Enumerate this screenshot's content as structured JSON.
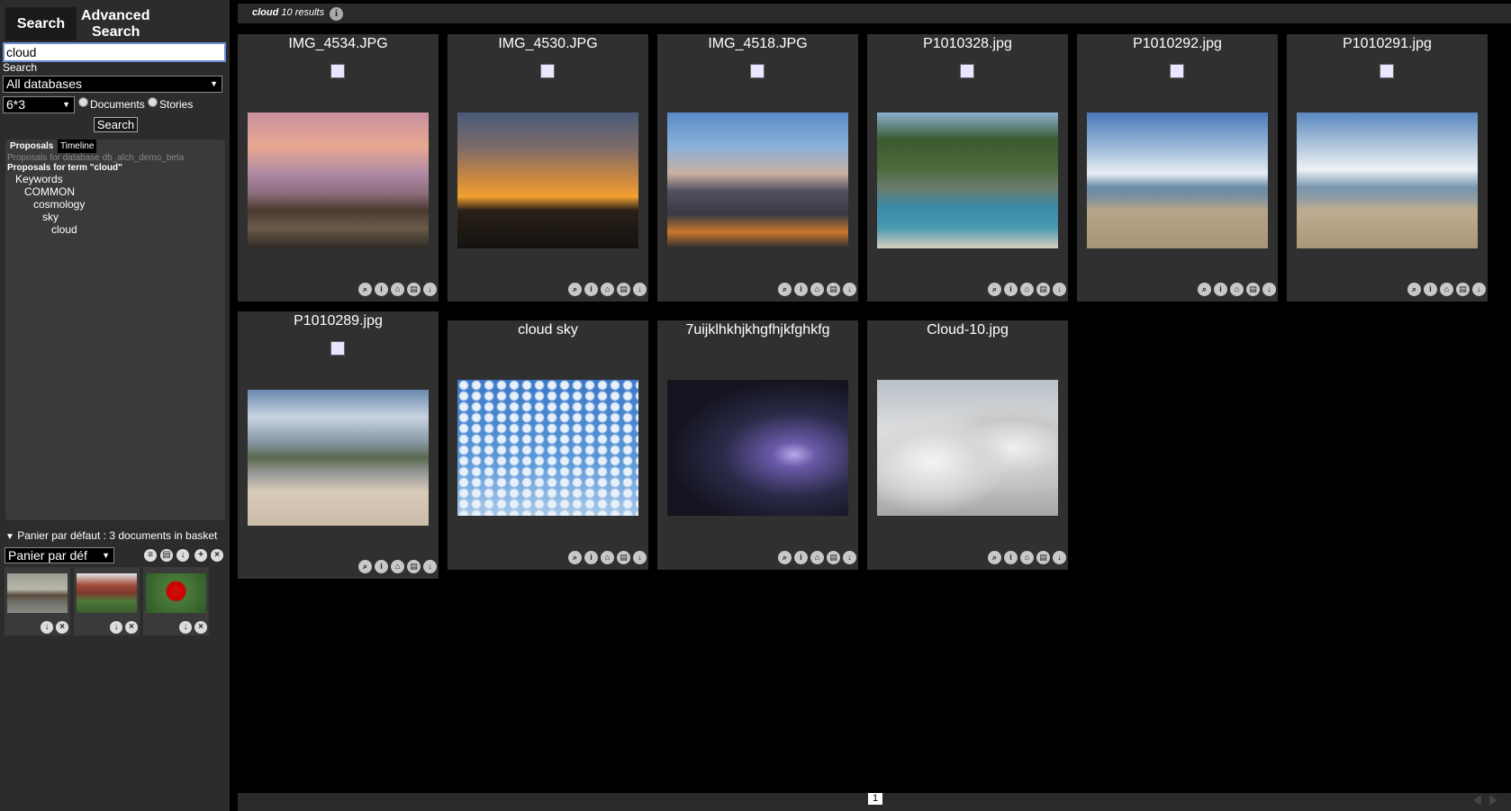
{
  "sidebar": {
    "tabs": {
      "search": "Search",
      "advanced_line1": "Advanced",
      "advanced_line2": "Search"
    },
    "search_value": "cloud",
    "search_label": "Search",
    "database_select": "All databases",
    "size_select": "6*3",
    "radio_documents": "Documents",
    "radio_stories": "Stories",
    "search_button": "Search",
    "proposals": {
      "tab_proposals": "Proposals",
      "tab_timeline": "Timeline",
      "db_line": "Proposals for database db_alch_demo_beta",
      "term_line": "Proposals for term \"cloud\"",
      "tree": [
        "Keywords",
        "COMMON",
        "cosmology",
        "sky",
        "cloud"
      ]
    },
    "basket": {
      "title": "Panier par défaut : 3 documents in basket",
      "select": "Panier par déf"
    }
  },
  "results": {
    "term": "cloud",
    "count_text": "10 results",
    "page": "1"
  },
  "cards": [
    {
      "title": "IMG_4534.JPG"
    },
    {
      "title": "IMG_4530.JPG"
    },
    {
      "title": "IMG_4518.JPG"
    },
    {
      "title": "P1010328.jpg"
    },
    {
      "title": "P1010292.jpg"
    },
    {
      "title": "P1010291.jpg"
    },
    {
      "title": "P1010289.jpg"
    },
    {
      "title": "cloud sky"
    },
    {
      "title": "7uijklhkhjkhgfhjkfghkfg"
    },
    {
      "title": "Cloud-10.jpg"
    }
  ],
  "icons": {
    "zoom": "zoom-icon",
    "info": "info-icon",
    "basket": "basket-icon",
    "print": "print-icon",
    "download": "download-icon",
    "close": "close-icon",
    "add": "add-icon"
  }
}
